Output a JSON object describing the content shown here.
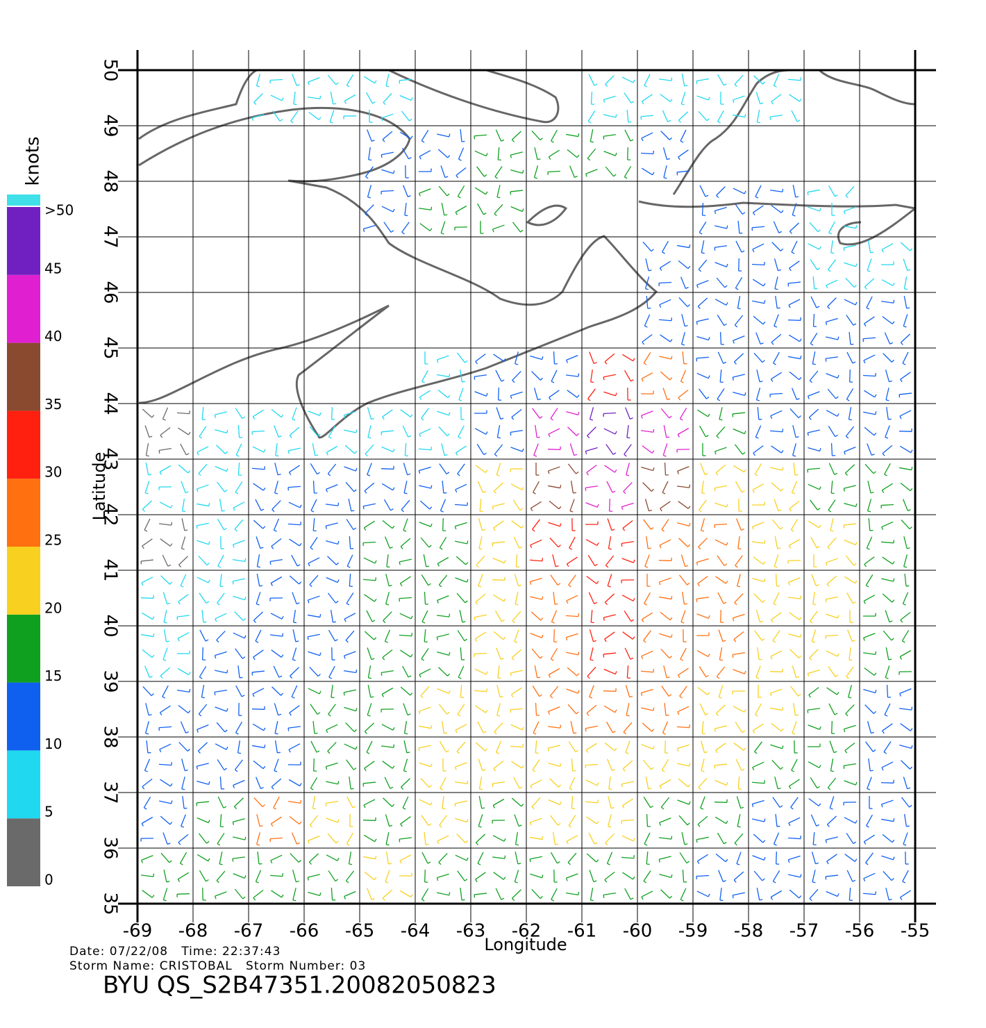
{
  "chart_data": {
    "type": "wind",
    "x_label": "Longitude",
    "y_label": "Latitude",
    "xlim": [
      -69,
      -55
    ],
    "ylim": [
      35,
      50
    ],
    "xticks": [
      -69,
      -68,
      -67,
      -66,
      -65,
      -64,
      -63,
      -62,
      -61,
      -60,
      -59,
      -58,
      -57,
      -56,
      -55
    ],
    "yticks": [
      35,
      36,
      37,
      38,
      39,
      40,
      41,
      42,
      43,
      44,
      45,
      46,
      47,
      48,
      49,
      50
    ],
    "grid": true,
    "colorbar": {
      "label": "knots",
      "lim": [
        0,
        50
      ],
      "ticks": [
        0,
        5,
        10,
        15,
        20,
        25,
        30,
        35,
        40,
        45,
        {
          "value": 50,
          "label": ">50"
        }
      ],
      "colors": [
        "#6a6a6a",
        "#20d8f0",
        "#1060f0",
        "#10a020",
        "#f8d020",
        "#ff7010",
        "#ff2010",
        "#8a4a30",
        "#e020d0",
        "#7020c0"
      ]
    },
    "grid_lon": [
      -68.5,
      -67.5,
      -66.5,
      -65.5,
      -64.5,
      -63.5,
      -62.5,
      -61.5,
      -60.5,
      -59.5,
      -58.5,
      -57.5,
      -56.5,
      -55.5
    ],
    "grid_lat": [
      49.5,
      48.5,
      47.5,
      46.5,
      45.5,
      44.5,
      43.5,
      42.5,
      41.5,
      40.5,
      39.5,
      38.5,
      37.5,
      36.5,
      35.5
    ],
    "speed": [
      [
        null,
        null,
        8,
        5,
        5,
        null,
        null,
        null,
        8,
        8,
        8,
        8,
        null,
        null
      ],
      [
        null,
        null,
        null,
        null,
        12,
        14,
        16,
        15,
        17,
        10,
        null,
        null,
        null,
        null
      ],
      [
        null,
        null,
        null,
        null,
        12,
        16,
        17,
        null,
        null,
        null,
        10,
        10,
        8,
        null
      ],
      [
        null,
        null,
        null,
        null,
        null,
        null,
        null,
        null,
        null,
        12,
        10,
        12,
        8,
        8
      ],
      [
        null,
        null,
        null,
        null,
        null,
        null,
        null,
        null,
        null,
        10,
        10,
        10,
        12,
        12
      ],
      [
        null,
        null,
        null,
        null,
        null,
        8,
        10,
        12,
        30,
        25,
        10,
        10,
        12,
        13
      ],
      [
        4,
        8,
        8,
        6,
        5,
        8,
        10,
        40,
        45,
        40,
        15,
        13,
        13,
        13
      ],
      [
        5,
        9,
        10,
        10,
        10,
        10,
        20,
        35,
        40,
        35,
        22,
        20,
        18,
        15
      ],
      [
        4,
        8,
        12,
        13,
        15,
        18,
        22,
        30,
        32,
        28,
        25,
        22,
        20,
        15
      ],
      [
        5,
        8,
        13,
        14,
        16,
        18,
        22,
        28,
        30,
        28,
        26,
        22,
        20,
        15
      ],
      [
        9,
        10,
        12,
        14,
        16,
        18,
        22,
        28,
        30,
        27,
        25,
        22,
        20,
        18
      ],
      [
        11,
        12,
        12,
        15,
        18,
        20,
        22,
        25,
        27,
        25,
        22,
        20,
        18,
        14
      ],
      [
        12,
        13,
        14,
        16,
        18,
        20,
        22,
        22,
        24,
        22,
        20,
        18,
        15,
        13
      ],
      [
        12,
        15,
        25,
        20,
        18,
        20,
        15,
        20,
        22,
        18,
        15,
        13,
        12,
        12
      ],
      [
        15,
        17,
        18,
        18,
        20,
        18,
        15,
        16,
        18,
        15,
        13,
        12,
        12,
        12
      ]
    ],
    "info_line1": "Date: 07/22/08   Time: 22:37:43",
    "info_line2": "Storm Name: CRISTOBAL   Storm Number: 03",
    "footer": "BYU QS_S2B47351.20082050823"
  }
}
